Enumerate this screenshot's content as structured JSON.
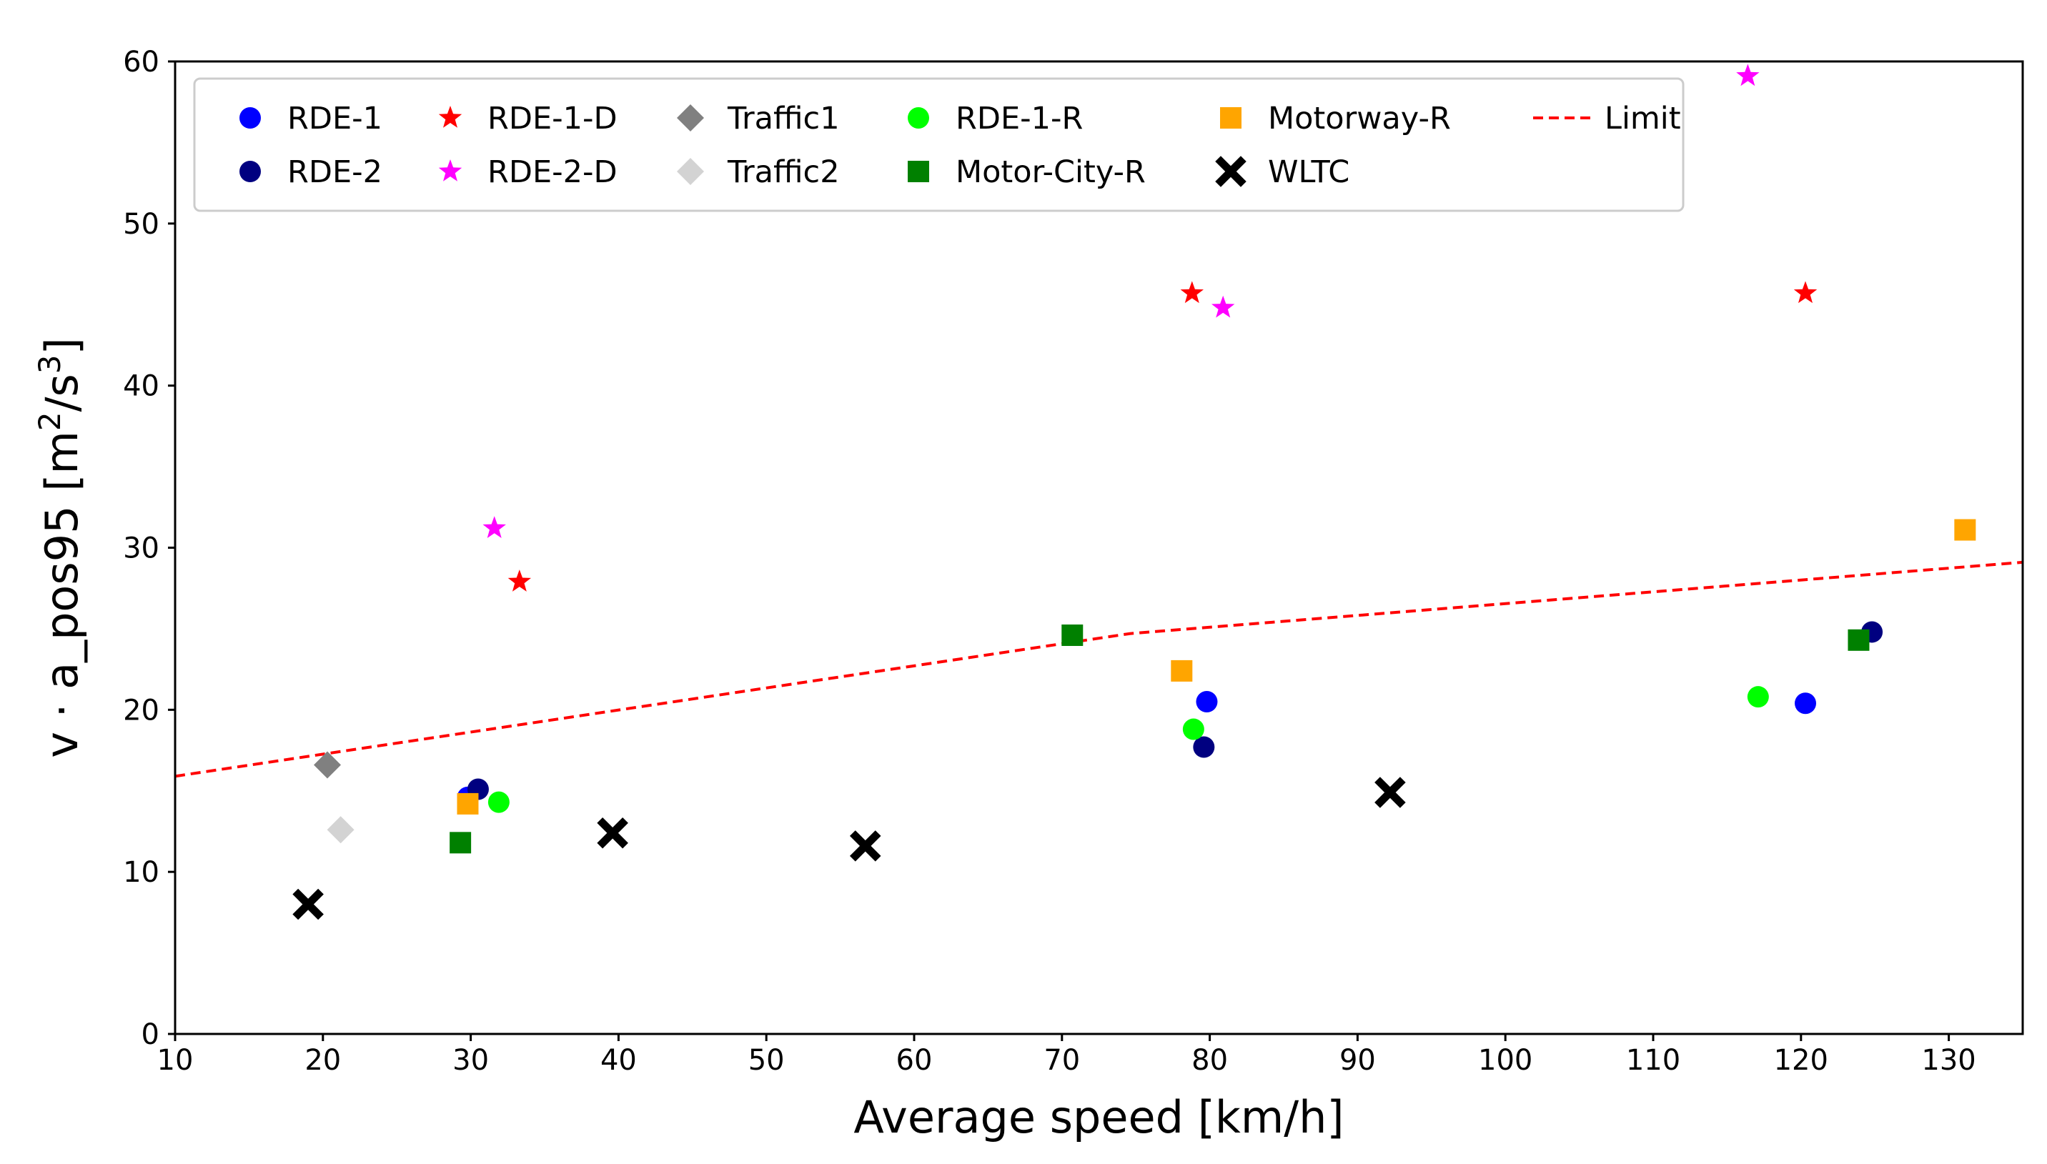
{
  "chart_data": {
    "type": "scatter",
    "xlabel": "Average speed [km/h]",
    "ylabel": {
      "main": "v · a_pos95 [m",
      "sup1": "2",
      "mid": "/s",
      "sup2": "3",
      "end": "]"
    },
    "xlim": [
      10,
      135
    ],
    "ylim": [
      0,
      60
    ],
    "xticks": [
      10,
      20,
      30,
      40,
      50,
      60,
      70,
      80,
      90,
      100,
      110,
      120,
      130
    ],
    "yticks": [
      0,
      10,
      20,
      30,
      40,
      50,
      60
    ],
    "legend_position": "top",
    "series": [
      {
        "name": "RDE-1",
        "marker": "circle",
        "color": "#0000ff",
        "points": [
          [
            29.8,
            14.6
          ],
          [
            79.8,
            20.5
          ],
          [
            120.3,
            20.4
          ]
        ]
      },
      {
        "name": "RDE-2",
        "marker": "circle",
        "color": "#000080",
        "points": [
          [
            30.5,
            15.1
          ],
          [
            79.6,
            17.7
          ],
          [
            124.8,
            24.8
          ]
        ]
      },
      {
        "name": "RDE-1-D",
        "marker": "star",
        "color": "#ff0000",
        "points": [
          [
            33.3,
            27.9
          ],
          [
            78.8,
            45.7
          ],
          [
            120.3,
            45.7
          ]
        ]
      },
      {
        "name": "RDE-2-D",
        "marker": "star",
        "color": "#ff00ff",
        "points": [
          [
            31.6,
            31.2
          ],
          [
            80.9,
            44.8
          ],
          [
            116.4,
            59.1
          ]
        ]
      },
      {
        "name": "Traffic1",
        "marker": "diamond",
        "color": "#808080",
        "points": [
          [
            20.3,
            16.6
          ]
        ]
      },
      {
        "name": "Traffic2",
        "marker": "diamond",
        "color": "#d3d3d3",
        "points": [
          [
            21.2,
            12.6
          ]
        ]
      },
      {
        "name": "RDE-1-R",
        "marker": "circle",
        "color": "#00ff00",
        "points": [
          [
            31.9,
            14.3
          ],
          [
            78.9,
            18.8
          ],
          [
            117.1,
            20.8
          ]
        ]
      },
      {
        "name": "Motor-City-R",
        "marker": "square",
        "color": "#008000",
        "points": [
          [
            29.3,
            11.8
          ],
          [
            70.7,
            24.6
          ],
          [
            123.9,
            24.3
          ]
        ]
      },
      {
        "name": "Motorway-R",
        "marker": "square",
        "color": "#ffa500",
        "points": [
          [
            29.8,
            14.2
          ],
          [
            78.1,
            22.4
          ],
          [
            131.1,
            31.1
          ]
        ]
      },
      {
        "name": "WLTC",
        "marker": "x",
        "color": "#000000",
        "points": [
          [
            19.0,
            8.0
          ],
          [
            39.6,
            12.4
          ],
          [
            56.7,
            11.6
          ],
          [
            92.2,
            14.9
          ]
        ]
      }
    ],
    "limit_line": {
      "name": "Limit",
      "color": "#ff0000",
      "style": "dashed",
      "points": [
        [
          10,
          15.9
        ],
        [
          74.6,
          24.7
        ],
        [
          135,
          29.1
        ]
      ]
    },
    "legend": {
      "columns": [
        [
          "RDE-1",
          "RDE-2"
        ],
        [
          "RDE-1-D",
          "RDE-2-D"
        ],
        [
          "Traffic1",
          "Traffic2"
        ],
        [
          "RDE-1-R",
          "Motor-City-R"
        ],
        [
          "Motorway-R",
          "WLTC"
        ],
        [
          "Limit"
        ]
      ]
    }
  }
}
